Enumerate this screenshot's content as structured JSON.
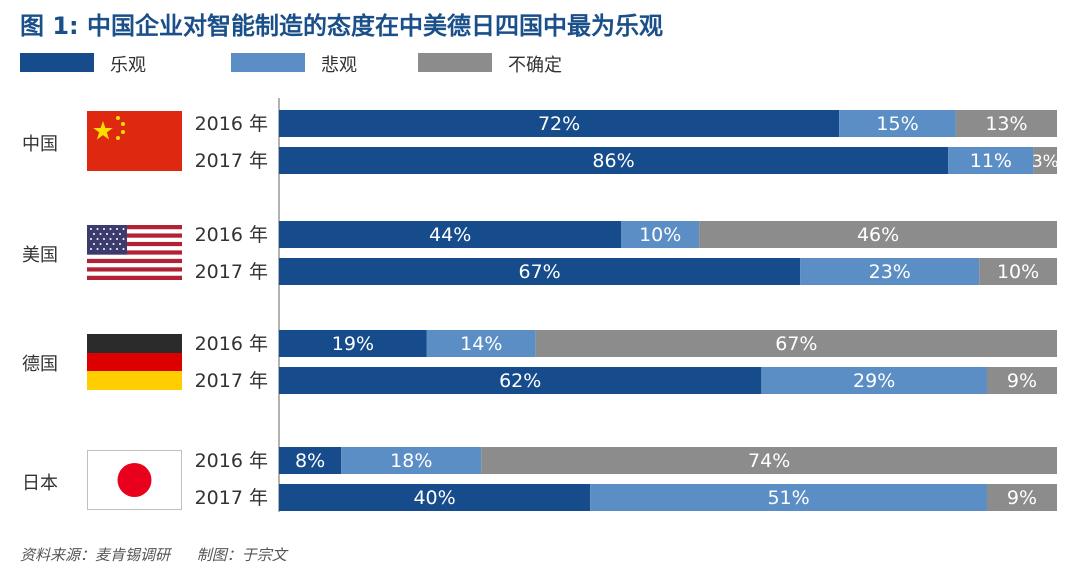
{
  "title": "图 1:  中国企业对智能制造的态度在中美德日四国中最为乐观",
  "legend": {
    "optimistic": "乐观",
    "pessimistic": "悲观",
    "uncertain": "不确定"
  },
  "colors": {
    "title": "#1a4f8a",
    "optimistic": "#164c8c",
    "pessimistic": "#5b8ec4",
    "uncertain": "#8c8c8c"
  },
  "countries": [
    {
      "name": "中国",
      "flag_icon": "china-flag-icon"
    },
    {
      "name": "美国",
      "flag_icon": "usa-flag-icon"
    },
    {
      "name": "德国",
      "flag_icon": "germany-flag-icon"
    },
    {
      "name": "日本",
      "flag_icon": "japan-flag-icon"
    }
  ],
  "chart_data": {
    "type": "bar",
    "orientation": "horizontal",
    "stacked": true,
    "unit": "%",
    "xlim": [
      0,
      100
    ],
    "grid": false,
    "legend_position": "top-left",
    "groups": [
      "中国",
      "美国",
      "德国",
      "日本"
    ],
    "years": [
      "2016 年",
      "2017 年"
    ],
    "series": [
      {
        "name": "乐观",
        "color": "#164c8c",
        "values": [
          [
            72,
            86
          ],
          [
            44,
            67
          ],
          [
            19,
            62
          ],
          [
            8,
            40
          ]
        ]
      },
      {
        "name": "悲观",
        "color": "#5b8ec4",
        "values": [
          [
            15,
            11
          ],
          [
            10,
            23
          ],
          [
            14,
            29
          ],
          [
            18,
            51
          ]
        ]
      },
      {
        "name": "不确定",
        "color": "#8c8c8c",
        "values": [
          [
            13,
            3
          ],
          [
            46,
            10
          ],
          [
            67,
            9
          ],
          [
            74,
            9
          ]
        ]
      }
    ]
  },
  "footer": {
    "source": "资料来源：麦肯锡调研",
    "author": "制图：于宗文"
  }
}
